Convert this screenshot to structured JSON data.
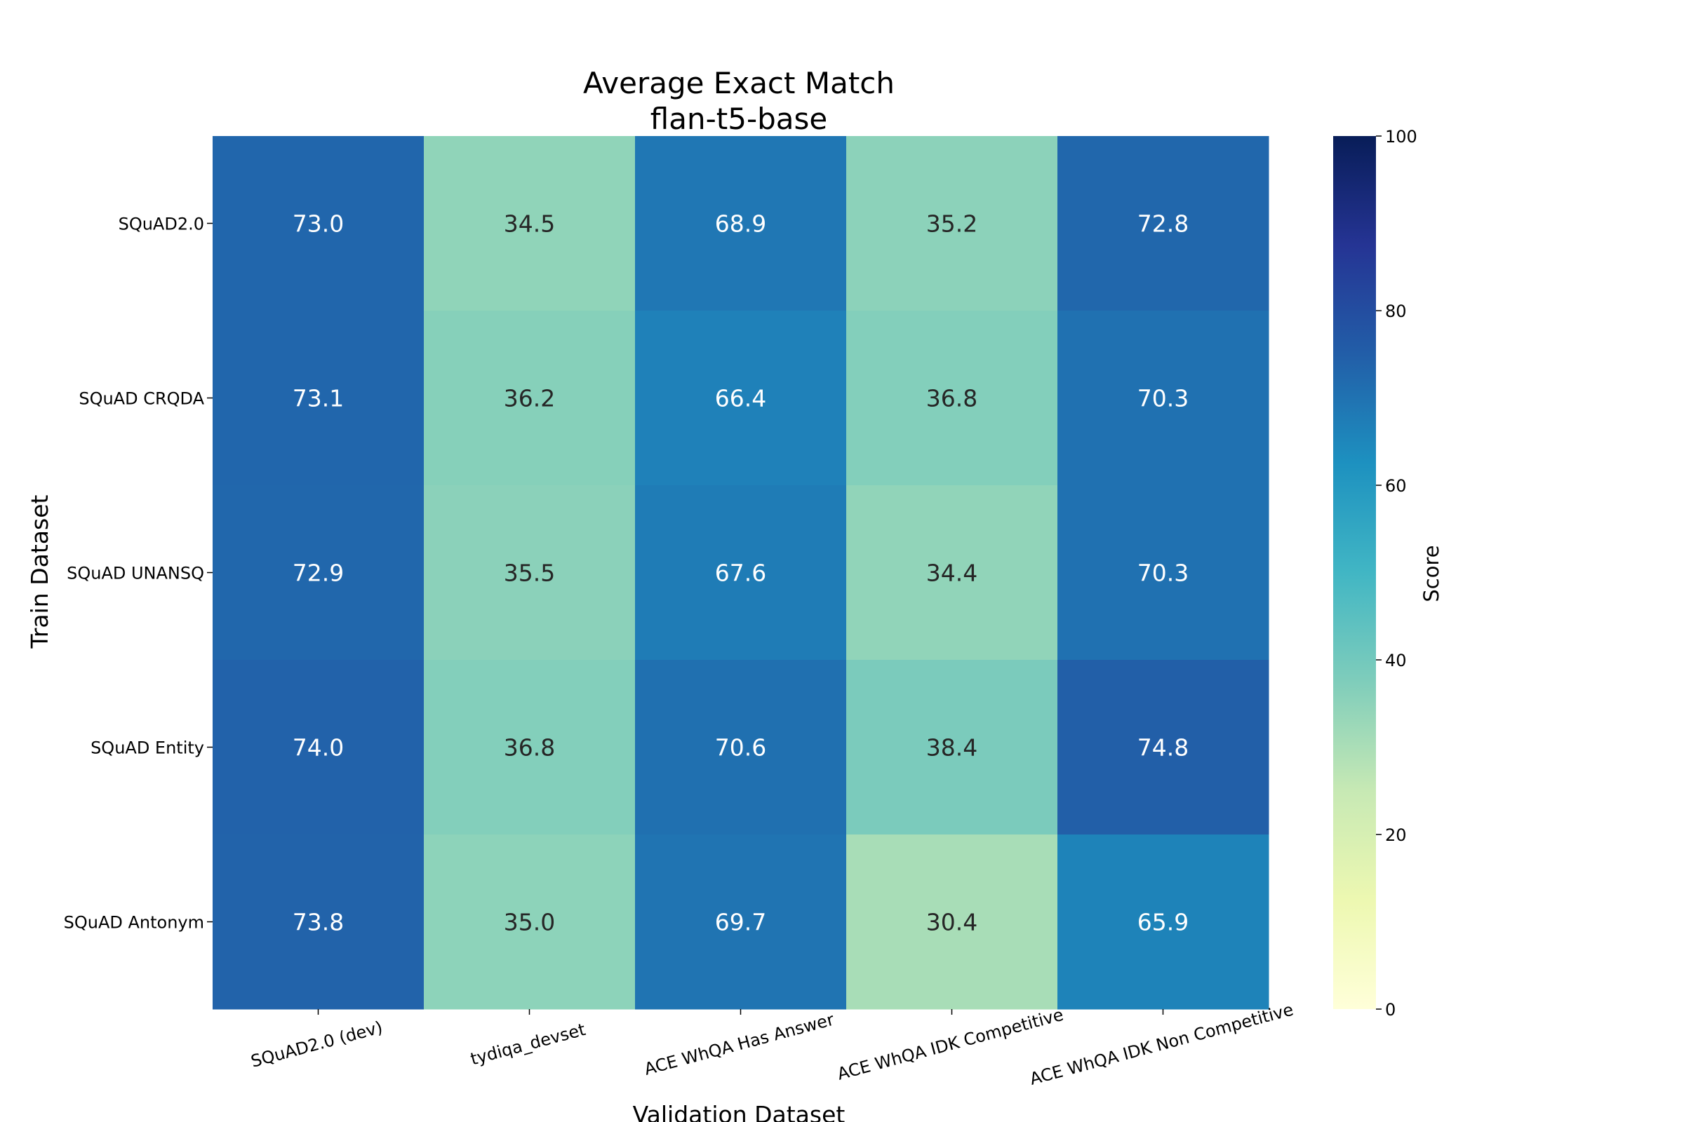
{
  "chart_data": {
    "type": "heatmap",
    "title": "Average Exact Match",
    "subtitle": "flan-t5-base",
    "xlabel": "Validation Dataset",
    "ylabel": "Train Dataset",
    "x_categories": [
      "SQuAD2.0 (dev)",
      "tydiqa_devset",
      "ACE WhQA Has Answer",
      "ACE WhQA IDK Competitive",
      "ACE WhQA IDK Non Competitive"
    ],
    "y_categories": [
      "SQuAD2.0",
      "SQuAD CRQDA",
      "SQuAD UNANSQ",
      "SQuAD Entity",
      "SQuAD Antonym"
    ],
    "values": [
      [
        73.0,
        34.5,
        68.9,
        35.2,
        72.8
      ],
      [
        73.1,
        36.2,
        66.4,
        36.8,
        70.3
      ],
      [
        72.9,
        35.5,
        67.6,
        34.4,
        70.3
      ],
      [
        74.0,
        36.8,
        70.6,
        38.4,
        74.8
      ],
      [
        73.8,
        35.0,
        69.7,
        30.4,
        65.9
      ]
    ],
    "colorbar": {
      "label": "Score",
      "range": [
        0,
        100
      ],
      "ticks": [
        0,
        20,
        40,
        60,
        80,
        100
      ],
      "colormap": "YlGnBu"
    },
    "grid": false,
    "legend": "colorbar-right"
  }
}
